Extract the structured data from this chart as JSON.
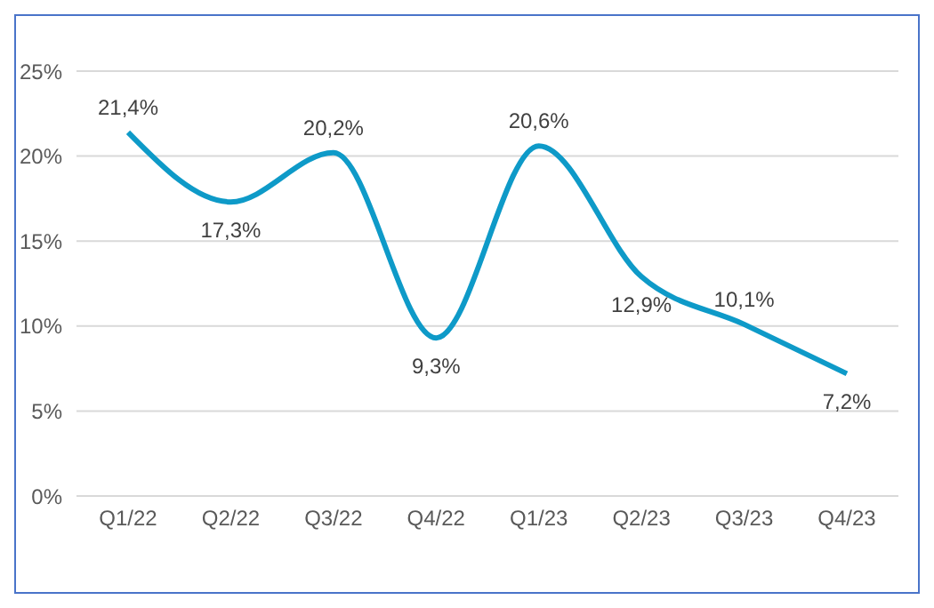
{
  "chart_data": {
    "type": "line",
    "categories": [
      "Q1/22",
      "Q2/22",
      "Q3/22",
      "Q4/22",
      "Q1/23",
      "Q2/23",
      "Q3/23",
      "Q4/23"
    ],
    "series": [
      {
        "color": "#0e9ac8",
        "values": [
          21.4,
          17.3,
          20.2,
          9.3,
          20.6,
          12.9,
          10.1,
          7.2
        ],
        "value_labels": [
          "21,4%",
          "17,3%",
          "20,2%",
          "9,3%",
          "20,6%",
          "12,9%",
          "10,1%",
          "7,2%"
        ]
      }
    ],
    "ylim": [
      0,
      25
    ],
    "yticks": [
      {
        "value": 0,
        "label": "0%"
      },
      {
        "value": 5,
        "label": "5%"
      },
      {
        "value": 10,
        "label": "10%"
      },
      {
        "value": 15,
        "label": "15%"
      },
      {
        "value": 20,
        "label": "20%"
      },
      {
        "value": 25,
        "label": "25%"
      }
    ],
    "grid": "y",
    "marker": "none",
    "line_style": "solid",
    "legend": false
  }
}
